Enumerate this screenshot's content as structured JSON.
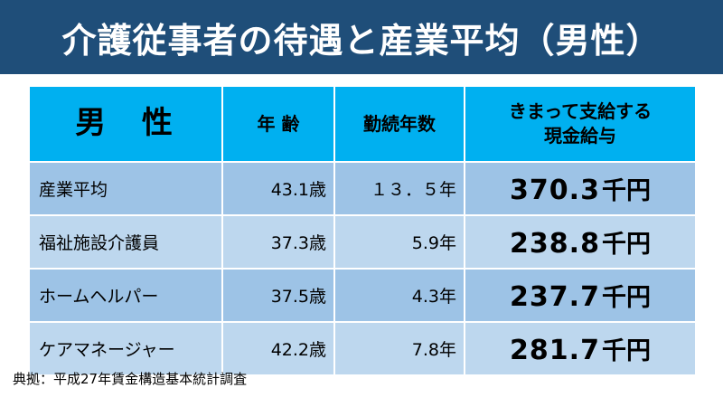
{
  "title": "介護従事者の待遇と産業平均（男性）",
  "table": {
    "headers": {
      "gender": "男 性",
      "age": "年 齢",
      "tenure": "勤続年数",
      "pay_line1": "きまって支給する",
      "pay_line2": "現金給与"
    },
    "rows": [
      {
        "name": "産業平均",
        "age": "43.1歳",
        "tenure": "１３．５年",
        "pay": "370.3",
        "pay_unit": "千円"
      },
      {
        "name": "福祉施設介護員",
        "age": "37.3歳",
        "tenure": "5.9年",
        "pay": "238.8",
        "pay_unit": "千円"
      },
      {
        "name": "ホームヘルパー",
        "age": "37.5歳",
        "tenure": "4.3年",
        "pay": "237.7",
        "pay_unit": "千円"
      },
      {
        "name": "ケアマネージャー",
        "age": "42.2歳",
        "tenure": "7.8年",
        "pay": "281.7",
        "pay_unit": "千円"
      }
    ]
  },
  "source": "典拠：平成27年賃金構造基本統計調査"
}
